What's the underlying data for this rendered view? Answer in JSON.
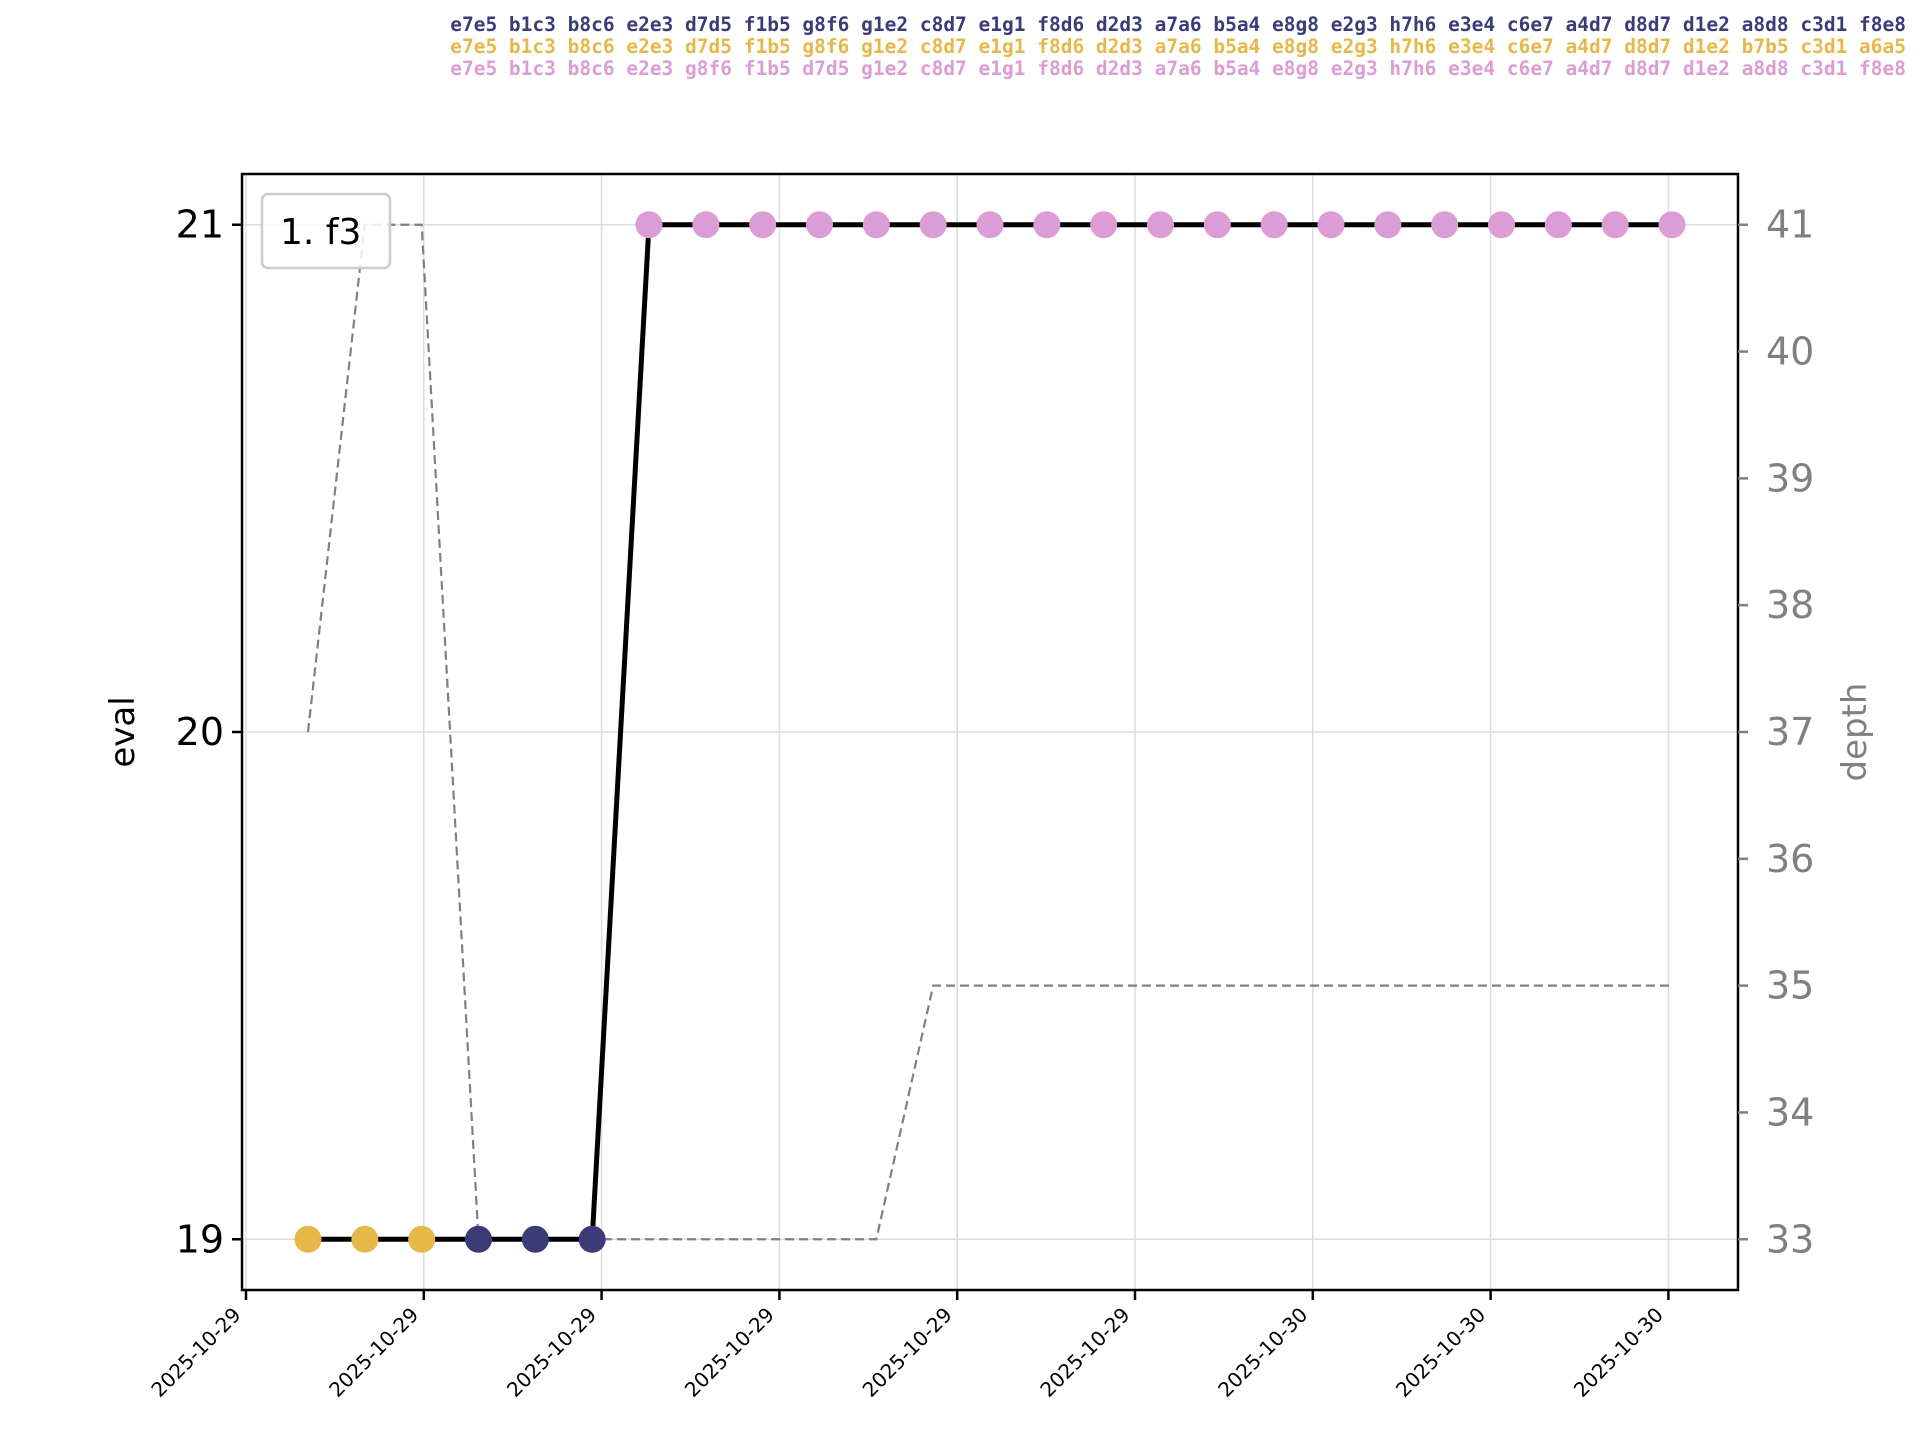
{
  "pv_lines": [
    {
      "text": "e7e5 b1c3 b8c6 e2e3 d7d5 f1b5 g8f6 g1e2 c8d7 e1g1 f8d6 d2d3 a7a6 b5a4 e8g8 e2g3 h7h6 e3e4 c6e7 a4d7 d8d7 d1e2 a8d8 c3d1 f8e8",
      "color": "#3b3b78"
    },
    {
      "text": "e7e5 b1c3 b8c6 e2e3 d7d5 f1b5 g8f6 g1e2 c8d7 e1g1 f8d6 d2d3 a7a6 b5a4 e8g8 e2g3 h7h6 e3e4 c6e7 a4d7 d8d7 d1e2 b7b5 c3d1 a6a5",
      "color": "#e6b84a"
    },
    {
      "text": "e7e5 b1c3 b8c6 e2e3 g8f6 f1b5 d7d5 g1e2 c8d7 e1g1 f8d6 d2d3 a7a6 b5a4 e8g8 e2g3 h7h6 e3e4 c6e7 a4d7 d8d7 d1e2 a8d8 c3d1 f8e8",
      "color": "#dc9cd6"
    }
  ],
  "chart_data": {
    "type": "line",
    "legend": {
      "label": "1. f3",
      "position": "top-left"
    },
    "y_left": {
      "label": "eval",
      "ticks": [
        19,
        20,
        21
      ],
      "range": [
        18.9,
        21.1
      ]
    },
    "y_right": {
      "label": "depth",
      "ticks": [
        33,
        34,
        35,
        36,
        37,
        38,
        39,
        40,
        41
      ],
      "range": [
        32.6,
        41.4
      ],
      "color": "#808080"
    },
    "x_ticks": [
      "2025-10-29",
      "2025-10-29",
      "2025-10-29",
      "2025-10-29",
      "2025-10-29",
      "2025-10-29",
      "2025-10-30",
      "2025-10-30",
      "2025-10-30"
    ],
    "grid": true,
    "eval_line_color": "#000000",
    "depth_line_color": "#808080",
    "points": [
      {
        "eval": 19,
        "depth": 37,
        "color": "#e6b84a"
      },
      {
        "eval": 19,
        "depth": 41,
        "color": "#e6b84a"
      },
      {
        "eval": 19,
        "depth": 41,
        "color": "#e6b84a"
      },
      {
        "eval": 19,
        "depth": 33,
        "color": "#3b3b78"
      },
      {
        "eval": 19,
        "depth": 33,
        "color": "#3b3b78"
      },
      {
        "eval": 19,
        "depth": 33,
        "color": "#3b3b78"
      },
      {
        "eval": 21,
        "depth": 33,
        "color": "#dc9cd6"
      },
      {
        "eval": 21,
        "depth": 33,
        "color": "#dc9cd6"
      },
      {
        "eval": 21,
        "depth": 33,
        "color": "#dc9cd6"
      },
      {
        "eval": 21,
        "depth": 33,
        "color": "#dc9cd6"
      },
      {
        "eval": 21,
        "depth": 33,
        "color": "#dc9cd6"
      },
      {
        "eval": 21,
        "depth": 35,
        "color": "#dc9cd6"
      },
      {
        "eval": 21,
        "depth": 35,
        "color": "#dc9cd6"
      },
      {
        "eval": 21,
        "depth": 35,
        "color": "#dc9cd6"
      },
      {
        "eval": 21,
        "depth": 35,
        "color": "#dc9cd6"
      },
      {
        "eval": 21,
        "depth": 35,
        "color": "#dc9cd6"
      },
      {
        "eval": 21,
        "depth": 35,
        "color": "#dc9cd6"
      },
      {
        "eval": 21,
        "depth": 35,
        "color": "#dc9cd6"
      },
      {
        "eval": 21,
        "depth": 35,
        "color": "#dc9cd6"
      },
      {
        "eval": 21,
        "depth": 35,
        "color": "#dc9cd6"
      },
      {
        "eval": 21,
        "depth": 35,
        "color": "#dc9cd6"
      },
      {
        "eval": 21,
        "depth": 35,
        "color": "#dc9cd6"
      },
      {
        "eval": 21,
        "depth": 35,
        "color": "#dc9cd6"
      },
      {
        "eval": 21,
        "depth": 35,
        "color": "#dc9cd6"
      },
      {
        "eval": 21,
        "depth": 35,
        "color": "#dc9cd6"
      }
    ]
  }
}
